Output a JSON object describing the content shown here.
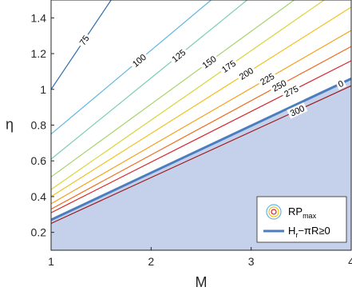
{
  "chart_data": {
    "type": "line",
    "title": "",
    "xlabel": "M",
    "ylabel": "η",
    "xlim": [
      1,
      4
    ],
    "ylim": [
      0.1,
      1.5
    ],
    "xticks": [
      "1",
      "2",
      "3",
      "4"
    ],
    "yticks": [
      "0.2",
      "0.4",
      "0.6",
      "0.8",
      "1",
      "1.2",
      "1.4"
    ],
    "contours": [
      {
        "level": "75",
        "color": "#2d6aa8",
        "points": [
          [
            1,
            1.0
          ],
          [
            1.6,
            1.5
          ]
        ]
      },
      {
        "level": "100",
        "color": "#5fb8df",
        "points": [
          [
            1,
            0.75
          ],
          [
            2.6,
            1.5
          ]
        ]
      },
      {
        "level": "125",
        "color": "#7ccdb8",
        "points": [
          [
            1,
            0.61
          ],
          [
            2.96,
            1.5
          ]
        ]
      },
      {
        "level": "150",
        "color": "#a7d36d",
        "points": [
          [
            1,
            0.51
          ],
          [
            3.43,
            1.5
          ]
        ]
      },
      {
        "level": "175",
        "color": "#d8d53b",
        "points": [
          [
            1,
            0.44
          ],
          [
            3.73,
            1.5
          ]
        ]
      },
      {
        "level": "200",
        "color": "#f0c21e",
        "points": [
          [
            1,
            0.4
          ],
          [
            4,
            1.46
          ]
        ]
      },
      {
        "level": "225",
        "color": "#f5a21b",
        "points": [
          [
            1,
            0.36
          ],
          [
            4,
            1.33
          ]
        ]
      },
      {
        "level": "250",
        "color": "#ef6a1e",
        "points": [
          [
            1,
            0.33
          ],
          [
            4,
            1.24
          ]
        ]
      },
      {
        "level": "275",
        "color": "#d7242a",
        "points": [
          [
            1,
            0.31
          ],
          [
            4,
            1.16
          ]
        ]
      },
      {
        "level": "300",
        "color": "#9e1a1a",
        "points": [
          [
            1,
            0.25
          ],
          [
            4,
            1.02
          ]
        ]
      }
    ],
    "boundary": {
      "label": "H_r−πR≥0",
      "level": "0",
      "color": "#4a7ebf",
      "points": [
        [
          1,
          0.27
        ],
        [
          4,
          1.06
        ]
      ],
      "fill": "#c5d0ea"
    },
    "legend": {
      "position": "bottom-right",
      "entries": [
        {
          "label": "RP",
          "subscript": "max"
        },
        {
          "label": "H",
          "subscript": "r",
          "suffix": "−πR≥0"
        }
      ]
    }
  }
}
